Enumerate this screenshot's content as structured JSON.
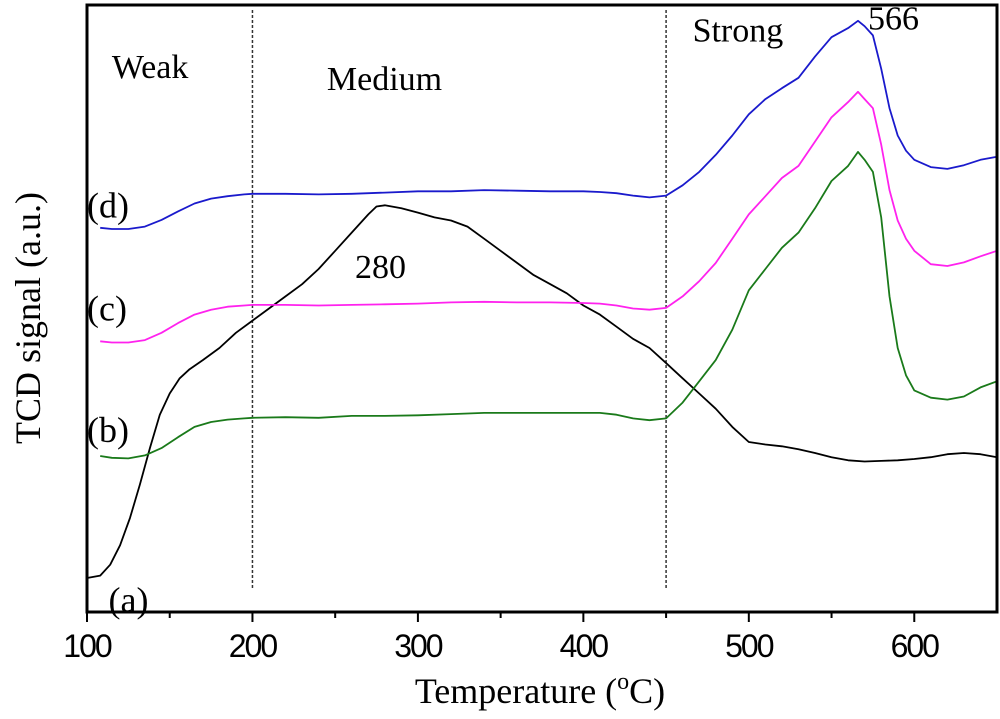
{
  "chart_data": {
    "type": "line",
    "title": "",
    "xlabel": "Temperature (",
    "xlabel_sup": "o",
    "xlabel_unit": "C)",
    "ylabel": "TCD signal (a.u.)",
    "xlim": [
      100,
      650
    ],
    "ylim": [
      0,
      100
    ],
    "x_ticks": [
      100,
      200,
      300,
      400,
      500,
      600
    ],
    "x_tick_labels": [
      "100",
      "200",
      "300",
      "400",
      "500",
      "600"
    ],
    "x_minor_ticks": [
      150,
      250,
      350,
      450,
      550
    ],
    "y_ticks_shown": false,
    "grid": false,
    "legend": "none",
    "region_dividers": [
      200,
      450
    ],
    "region_labels": [
      {
        "text": "Weak",
        "x": 115,
        "y": 88
      },
      {
        "text": "Medium",
        "x": 245,
        "y": 86
      },
      {
        "text": "Strong",
        "x": 466,
        "y": 94
      }
    ],
    "peak_annotations": [
      {
        "text": "280",
        "x": 262,
        "y": 55
      },
      {
        "text": "566",
        "x": 572,
        "y": 96
      }
    ],
    "series": [
      {
        "name": "(a)",
        "color": "#000000",
        "label_pos": {
          "x": 113,
          "y": 2
        },
        "x": [
          100,
          108,
          114,
          120,
          126,
          132,
          138,
          144,
          150,
          156,
          162,
          170,
          180,
          190,
          200,
          210,
          220,
          230,
          240,
          250,
          260,
          270,
          275,
          280,
          290,
          300,
          310,
          320,
          330,
          340,
          350,
          360,
          370,
          380,
          390,
          400,
          410,
          420,
          430,
          440,
          450,
          460,
          470,
          480,
          490,
          500,
          510,
          520,
          530,
          540,
          550,
          560,
          570,
          580,
          590,
          600,
          610,
          620,
          630,
          640,
          650
        ],
        "y": [
          5.6,
          6.0,
          7.8,
          11.0,
          15.5,
          21.0,
          27.0,
          32.5,
          36.0,
          38.5,
          40.0,
          41.5,
          43.5,
          46.0,
          48.0,
          50.0,
          52.0,
          54.0,
          56.5,
          59.5,
          62.5,
          65.5,
          66.8,
          67.0,
          66.5,
          65.8,
          65.0,
          64.5,
          63.5,
          61.5,
          59.5,
          57.5,
          55.5,
          54.0,
          52.5,
          50.5,
          49.0,
          47.0,
          45.0,
          43.5,
          41.0,
          38.5,
          36.0,
          33.5,
          30.5,
          28.0,
          27.6,
          27.3,
          26.8,
          26.2,
          25.5,
          25.0,
          24.8,
          24.9,
          25.0,
          25.2,
          25.5,
          26.0,
          26.2,
          26.0,
          25.5
        ]
      },
      {
        "name": "(b)",
        "color": "#1a7a1a",
        "label_pos": {
          "x": 100,
          "y": 30
        },
        "x": [
          108,
          115,
          125,
          135,
          145,
          155,
          165,
          175,
          185,
          195,
          200,
          220,
          240,
          260,
          280,
          300,
          320,
          340,
          360,
          380,
          400,
          410,
          420,
          430,
          440,
          450,
          460,
          470,
          480,
          490,
          500,
          510,
          520,
          530,
          540,
          550,
          560,
          566,
          570,
          575,
          580,
          585,
          590,
          595,
          600,
          610,
          620,
          630,
          640,
          650
        ],
        "y": [
          25.7,
          25.4,
          25.3,
          25.8,
          27.0,
          28.8,
          30.5,
          31.3,
          31.7,
          31.9,
          32.0,
          32.1,
          32.0,
          32.3,
          32.3,
          32.4,
          32.6,
          32.8,
          32.8,
          32.8,
          32.8,
          32.8,
          32.5,
          31.9,
          31.6,
          31.9,
          34.5,
          38.0,
          41.5,
          46.5,
          53.0,
          56.5,
          60.0,
          62.5,
          66.5,
          71.0,
          73.5,
          75.8,
          74.5,
          72.5,
          65.0,
          52.0,
          43.5,
          39.0,
          36.5,
          35.3,
          35.0,
          35.5,
          37.0,
          38.0
        ]
      },
      {
        "name": "(c)",
        "color": "#ff22ee",
        "label_pos": {
          "x": 100,
          "y": 50
        },
        "x": [
          108,
          115,
          125,
          135,
          145,
          155,
          165,
          175,
          185,
          195,
          200,
          220,
          240,
          260,
          280,
          300,
          320,
          340,
          360,
          380,
          400,
          410,
          420,
          430,
          440,
          450,
          460,
          470,
          480,
          490,
          500,
          510,
          520,
          530,
          540,
          550,
          560,
          566,
          570,
          575,
          580,
          585,
          590,
          595,
          600,
          610,
          620,
          630,
          640,
          650
        ],
        "y": [
          44.6,
          44.4,
          44.4,
          44.8,
          46.0,
          47.6,
          49.0,
          49.8,
          50.3,
          50.5,
          50.6,
          50.6,
          50.5,
          50.6,
          50.7,
          50.8,
          51.0,
          51.1,
          51.0,
          51.0,
          50.9,
          50.8,
          50.5,
          50.0,
          49.8,
          50.1,
          52.0,
          54.5,
          57.5,
          61.5,
          65.5,
          68.5,
          71.5,
          73.5,
          77.5,
          81.5,
          84.0,
          85.7,
          84.5,
          83.0,
          77.0,
          69.5,
          64.5,
          61.5,
          59.5,
          57.3,
          57.0,
          57.6,
          58.6,
          59.5
        ]
      },
      {
        "name": "(d)",
        "color": "#1a1acc",
        "label_pos": {
          "x": 100,
          "y": 67
        },
        "x": [
          108,
          115,
          125,
          135,
          145,
          155,
          165,
          175,
          185,
          195,
          200,
          220,
          240,
          260,
          280,
          300,
          320,
          340,
          360,
          380,
          400,
          410,
          420,
          430,
          440,
          450,
          460,
          470,
          480,
          490,
          500,
          510,
          520,
          530,
          540,
          550,
          560,
          566,
          570,
          575,
          580,
          585,
          590,
          595,
          600,
          610,
          620,
          630,
          640,
          650
        ],
        "y": [
          63.3,
          63.1,
          63.1,
          63.5,
          64.6,
          66.0,
          67.3,
          68.1,
          68.5,
          68.8,
          68.9,
          68.9,
          68.8,
          68.9,
          69.1,
          69.3,
          69.3,
          69.5,
          69.4,
          69.3,
          69.3,
          69.2,
          69.0,
          68.6,
          68.3,
          68.6,
          70.3,
          72.5,
          75.3,
          78.5,
          82.0,
          84.5,
          86.3,
          88.0,
          91.5,
          94.7,
          96.2,
          97.4,
          96.5,
          95.0,
          89.5,
          83.0,
          78.5,
          76.0,
          74.5,
          73.3,
          73.0,
          73.6,
          74.5,
          75.0
        ]
      }
    ]
  }
}
